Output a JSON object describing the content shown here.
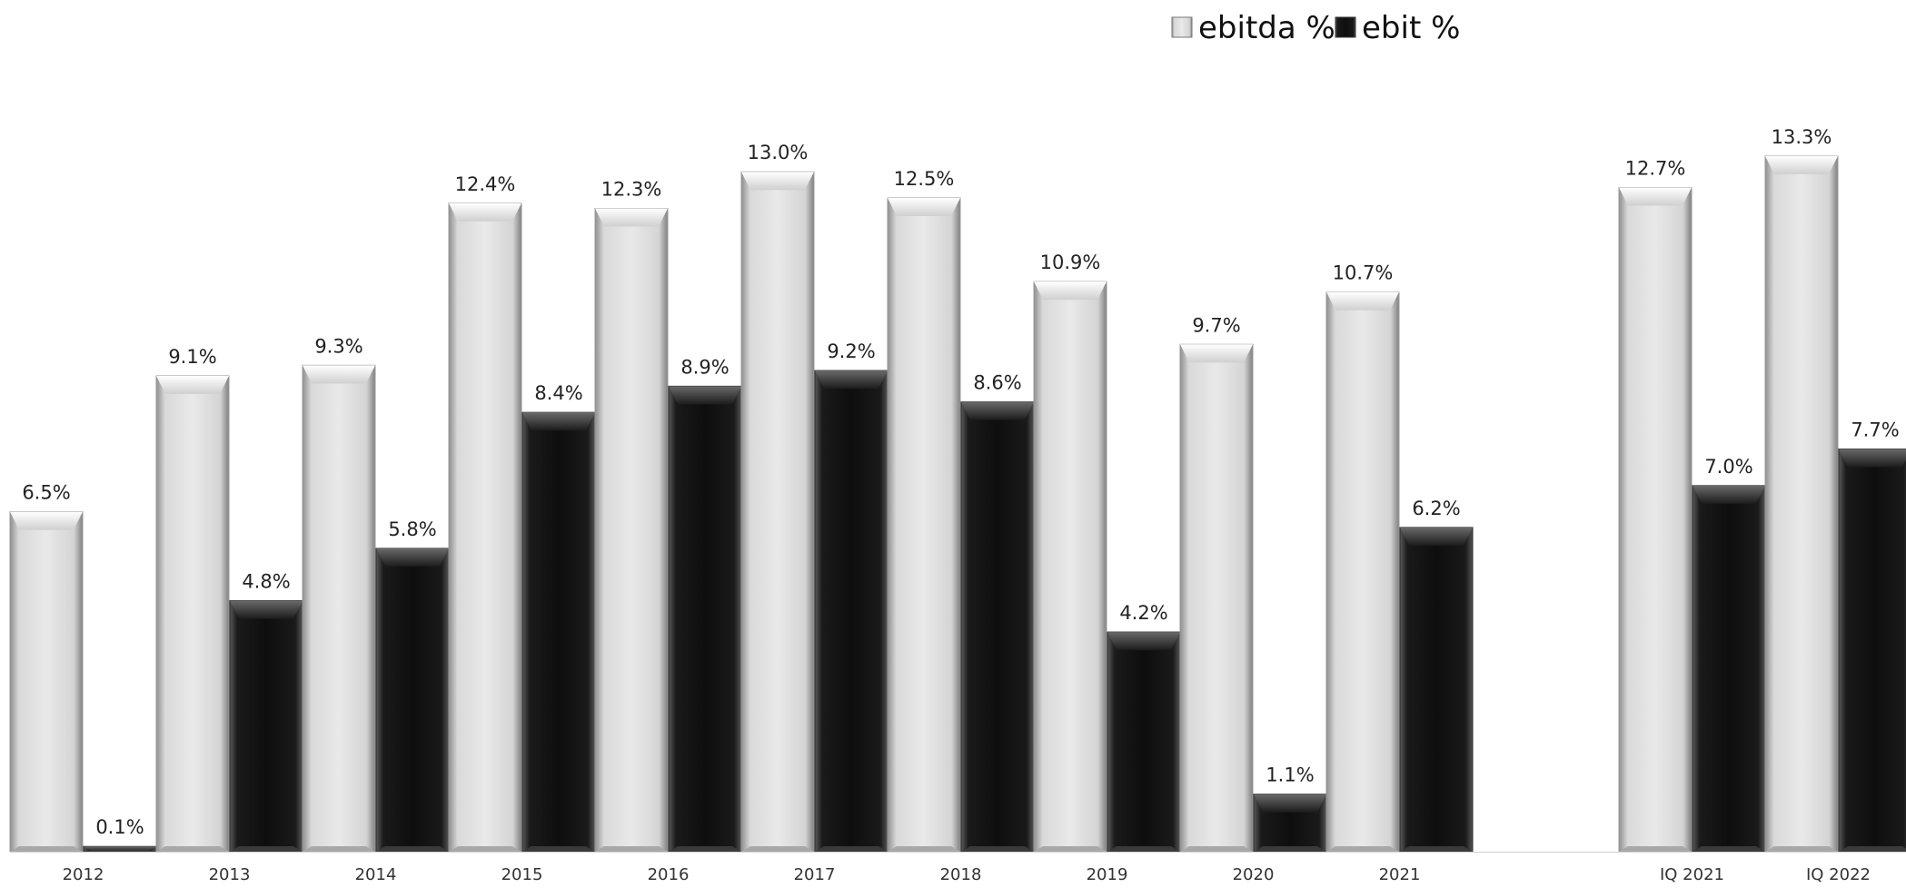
{
  "chart_data": {
    "type": "bar",
    "categories": [
      "2012",
      "2013",
      "2014",
      "2015",
      "2016",
      "2017",
      "2018",
      "2019",
      "2020",
      "2021",
      "",
      "IQ 2021",
      "IQ 2022"
    ],
    "series": [
      {
        "name": "ebitda %",
        "color": "#e6e6e6",
        "values": [
          6.5,
          9.1,
          9.3,
          12.4,
          12.3,
          13.0,
          12.5,
          10.9,
          9.7,
          10.7,
          null,
          12.7,
          13.3
        ],
        "labels": [
          "6.5%",
          "9.1%",
          "9.3%",
          "12.4%",
          "12.3%",
          "13.0%",
          "12.5%",
          "10.9%",
          "9.7%",
          "10.7%",
          "",
          "12.7%",
          "13.3%"
        ]
      },
      {
        "name": "ebit %",
        "color": "#111111",
        "values": [
          0.1,
          4.8,
          5.8,
          8.4,
          8.9,
          9.2,
          8.6,
          4.2,
          1.1,
          6.2,
          null,
          7.0,
          7.7
        ],
        "labels": [
          "0.1%",
          "4.8%",
          "5.8%",
          "8.4%",
          "8.9%",
          "9.2%",
          "8.6%",
          "4.2%",
          "1.1%",
          "6.2%",
          "",
          "7.0%",
          "7.7%"
        ]
      }
    ],
    "ylim": [
      0,
      14.5
    ],
    "grid": false,
    "legend_position": "top-center"
  }
}
